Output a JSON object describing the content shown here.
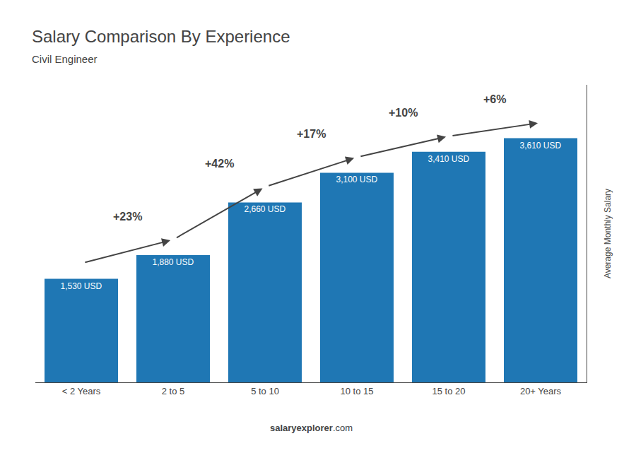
{
  "chart_data": {
    "type": "bar",
    "title": "Salary Comparison By Experience",
    "subtitle": "Civil Engineer",
    "ylabel": "Average Monthly Salary",
    "categories": [
      "< 2 Years",
      "2 to 5",
      "5 to 10",
      "10 to 15",
      "15 to 20",
      "20+ Years"
    ],
    "values": [
      1530,
      1880,
      2660,
      3100,
      3410,
      3610
    ],
    "value_labels": [
      "1,530 USD",
      "1,880 USD",
      "2,660 USD",
      "3,100 USD",
      "3,410 USD",
      "3,610 USD"
    ],
    "data_labels": true,
    "ylim": [
      0,
      4400
    ],
    "tick_labels": "x",
    "grid": false,
    "annotations": [
      {
        "text": "+23%",
        "from": "< 2 Years",
        "to": "2 to 5"
      },
      {
        "text": "+42%",
        "from": "2 to 5",
        "to": "5 to 10"
      },
      {
        "text": "+17%",
        "from": "5 to 10",
        "to": "10 to 15"
      },
      {
        "text": "+10%",
        "from": "10 to 15",
        "to": "15 to 20"
      },
      {
        "text": "+6%",
        "from": "15 to 20",
        "to": "20+ Years"
      }
    ],
    "footer": [
      "salary",
      "explorer",
      ".com"
    ]
  }
}
